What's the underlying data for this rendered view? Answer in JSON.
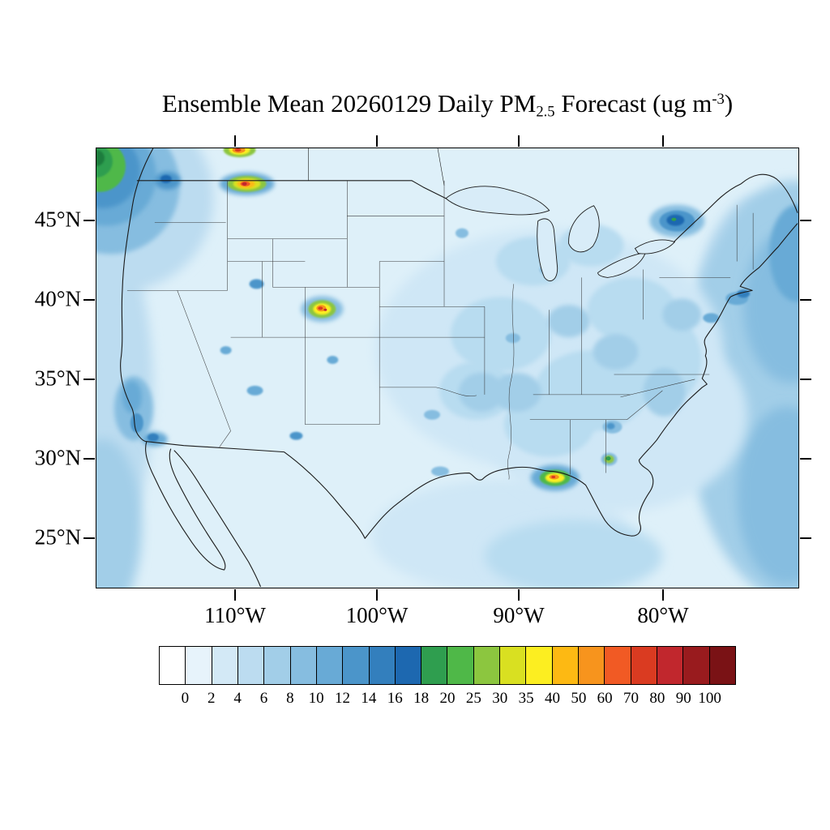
{
  "title": {
    "prefix": "Ensemble Mean 20260129 Daily PM",
    "subscript": "2.5",
    "mid": " Forecast (ug m",
    "superscript": "-3",
    "suffix": ")"
  },
  "axes": {
    "lat_ticks": [
      "45°N",
      "40°N",
      "35°N",
      "30°N",
      "25°N"
    ],
    "lon_ticks": [
      "110°W",
      "100°W",
      "90°W",
      "80°W"
    ]
  },
  "colorbar": {
    "labels": [
      "0",
      "2",
      "4",
      "6",
      "8",
      "10",
      "12",
      "14",
      "16",
      "18",
      "20",
      "25",
      "30",
      "35",
      "40",
      "50",
      "60",
      "70",
      "80",
      "90",
      "100"
    ],
    "colors": [
      "#ffffff",
      "#e7f3fb",
      "#d3e9f6",
      "#bcdcf0",
      "#a2cee8",
      "#86bde0",
      "#68aad6",
      "#4b95ca",
      "#337fbd",
      "#1d68b0",
      "#2f9e4f",
      "#4fb848",
      "#8cc63f",
      "#d9e021",
      "#fcee21",
      "#fdb913",
      "#f7941d",
      "#f15a24",
      "#da3b21",
      "#c1272d",
      "#991b1e",
      "#7a1215"
    ]
  },
  "chart_data": {
    "type": "heatmap",
    "title": "Ensemble Mean 20260129 Daily PM2.5 Forecast (ug m-3)",
    "variable": "Daily mean PM2.5 concentration",
    "units": "ug m-3",
    "region": "Continental United States with surrounding ocean, southern Canada and northern Mexico",
    "x_axis": {
      "label": "Longitude",
      "tick_labels": [
        "110°W",
        "100°W",
        "90°W",
        "80°W"
      ]
    },
    "y_axis": {
      "label": "Latitude",
      "tick_labels": [
        "45°N",
        "40°N",
        "35°N",
        "30°N",
        "25°N"
      ]
    },
    "colorbar": {
      "levels": [
        0,
        2,
        4,
        6,
        8,
        10,
        12,
        14,
        16,
        18,
        20,
        25,
        30,
        35,
        40,
        50,
        60,
        70,
        80,
        90,
        100
      ],
      "colors": [
        "#ffffff",
        "#e7f3fb",
        "#d3e9f6",
        "#bcdcf0",
        "#a2cee8",
        "#86bde0",
        "#68aad6",
        "#4b95ca",
        "#337fbd",
        "#1d68b0",
        "#2f9e4f",
        "#4fb848",
        "#8cc63f",
        "#d9e021",
        "#fcee21",
        "#fdb913",
        "#f7941d",
        "#f15a24",
        "#da3b21",
        "#c1272d",
        "#991b1e",
        "#7a1215"
      ],
      "orientation": "horizontal",
      "position": "bottom"
    },
    "features": [
      {
        "name": "Pacific Northwest coastal maximum (green core)",
        "approx_location": "northwest corner of map",
        "approx_value_ug_m3": "14-20"
      },
      {
        "name": "Montana hotspot (red/yellow core)",
        "approx_location": "about 47.5N 110W",
        "approx_value_ug_m3": "40-100"
      },
      {
        "name": "Small hotspot clipped at northern map edge",
        "approx_location": "top edge near 110W",
        "approx_value_ug_m3": "30-60"
      },
      {
        "name": "Colorado Front Range hotspot (red/orange/yellow)",
        "approx_location": "about 39.8N 105W",
        "approx_value_ug_m3": "30-100"
      },
      {
        "name": "Gulf Coast / Florida panhandle hotspot (yellow-orange)",
        "approx_location": "about 29N 87W",
        "approx_value_ug_m3": "25-50"
      },
      {
        "name": "Central Georgia green spot",
        "approx_location": "about 30N 84W",
        "approx_value_ug_m3": "14-18"
      },
      {
        "name": "Northern New York / Vermont dark-blue maximum",
        "approx_location": "about 44.8N 73.5W",
        "approx_value_ug_m3": "8-14"
      },
      {
        "name": "California coastal enhancements",
        "approx_location": "34N-38N along the coast",
        "approx_value_ug_m3": "6-10"
      },
      {
        "name": "Atlantic offshore enhanced band",
        "approx_location": "right (eastern) edge of map",
        "approx_value_ug_m3": "4-8"
      },
      {
        "name": "Broad eastern US light-blue shading",
        "approx_value_ug_m3": "4-8"
      },
      {
        "name": "Background over central and western US",
        "approx_value_ug_m3": "0-4"
      }
    ]
  }
}
